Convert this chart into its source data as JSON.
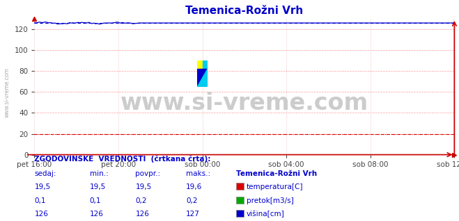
{
  "title": "Temenica-Rožni Vrh",
  "title_color": "#0000cc",
  "bg_color": "#ffffff",
  "plot_bg_color": "#ffffff",
  "grid_color_h": "#ff9999",
  "grid_color_v": "#ddaaaa",
  "xticklabels": [
    "pet 16:00",
    "pet 20:00",
    "sob 00:00",
    "sob 04:00",
    "sob 08:00",
    "sob 12:00"
  ],
  "xtick_positions": [
    0,
    48,
    96,
    144,
    192,
    240
  ],
  "n_points": 241,
  "ylim": [
    0,
    130
  ],
  "yticks": [
    0,
    20,
    40,
    60,
    80,
    100,
    120
  ],
  "tick_color": "#444444",
  "temperatura_value": 19.5,
  "temperatura_color": "#dd0000",
  "pretok_value": 0.1,
  "pretok_color": "#00aa00",
  "visina_value": 126,
  "visina_color": "#0000cc",
  "watermark": "www.si-vreme.com",
  "watermark_color": "#cccccc",
  "watermark_fontsize": 24,
  "left_label": "www.si-vreme.com",
  "left_label_color": "#aaaaaa",
  "table_header": "ZGODOVINSKE  VREDNOSTI  (črtkana črta):",
  "table_header_color": "#0000cc",
  "table_col1": "sedaj:",
  "table_col2": "min.:",
  "table_col3": "povpr.:",
  "table_col4": "maks.:",
  "table_col5": "Temenica-Rožni Vrh",
  "row1_vals": [
    "19,5",
    "19,5",
    "19,5",
    "19,6"
  ],
  "row2_vals": [
    "0,1",
    "0,1",
    "0,2",
    "0,2"
  ],
  "row3_vals": [
    "126",
    "126",
    "126",
    "127"
  ],
  "row1_label": "temperatura[C]",
  "row2_label": "pretok[m3/s]",
  "row3_label": "višina[cm]",
  "row1_color": "#dd0000",
  "row2_color": "#00aa00",
  "row3_color": "#0000cc",
  "table_text_color": "#0000cc",
  "logo_yellow": "#ffff00",
  "logo_cyan": "#00ccee",
  "logo_blue": "#0000cc"
}
